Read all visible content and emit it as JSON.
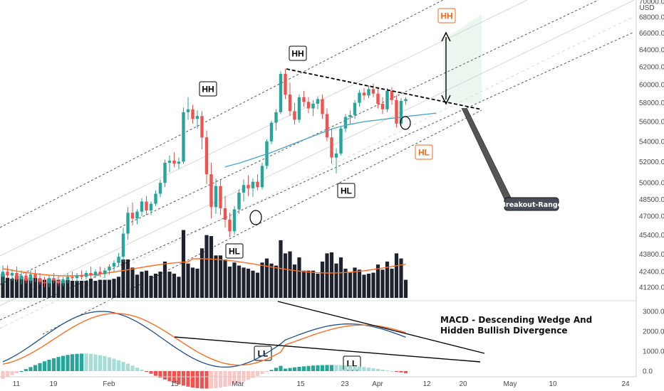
{
  "chart_data": [
    {
      "type": "candlestick",
      "symbol_currency": "USD",
      "price_axis": {
        "ticks": [
          41200,
          42400,
          43800,
          45400,
          47000,
          48500,
          50000,
          52000,
          54000,
          56000,
          58000,
          60000,
          62000,
          64000,
          66000,
          68000,
          70000
        ],
        "tick_labels": [
          "41200.0",
          "42400.0",
          "43800.0",
          "45400.0",
          "47000.0",
          "48500.0",
          "50000.0",
          "52000.0",
          "54000.0",
          "56000.0",
          "58000.0",
          "60000.0",
          "62000.0",
          "64000.0",
          "66000.0",
          "68000.0",
          "70000.0"
        ],
        "scale": "log"
      },
      "time_axis": {
        "labels": [
          "11",
          "19",
          "Feb",
          "15",
          "Mar",
          "15",
          "23",
          "Apr",
          "12",
          "20",
          "May",
          "10",
          "24"
        ]
      },
      "candles": [
        {
          "o": 42000,
          "h": 42900,
          "l": 41500,
          "c": 42400
        },
        {
          "o": 42400,
          "h": 42900,
          "l": 41900,
          "c": 42100
        },
        {
          "o": 42100,
          "h": 42600,
          "l": 41700,
          "c": 42300
        },
        {
          "o": 42300,
          "h": 42800,
          "l": 41600,
          "c": 41800
        },
        {
          "o": 41800,
          "h": 42500,
          "l": 41400,
          "c": 42100
        },
        {
          "o": 42100,
          "h": 42400,
          "l": 41500,
          "c": 41700
        },
        {
          "o": 41700,
          "h": 42500,
          "l": 41500,
          "c": 42200
        },
        {
          "o": 42200,
          "h": 42600,
          "l": 41600,
          "c": 41900
        },
        {
          "o": 41900,
          "h": 42300,
          "l": 41400,
          "c": 41600
        },
        {
          "o": 41600,
          "h": 42000,
          "l": 41200,
          "c": 41500
        },
        {
          "o": 41500,
          "h": 42100,
          "l": 41200,
          "c": 41900
        },
        {
          "o": 41900,
          "h": 42300,
          "l": 41500,
          "c": 41700
        },
        {
          "o": 41700,
          "h": 42100,
          "l": 41300,
          "c": 41500
        },
        {
          "o": 41500,
          "h": 42000,
          "l": 41300,
          "c": 41800
        },
        {
          "o": 41800,
          "h": 42300,
          "l": 41500,
          "c": 42000
        },
        {
          "o": 42000,
          "h": 42400,
          "l": 41700,
          "c": 41900
        },
        {
          "o": 41900,
          "h": 42300,
          "l": 41600,
          "c": 42100
        },
        {
          "o": 42100,
          "h": 42500,
          "l": 41800,
          "c": 42000
        },
        {
          "o": 42000,
          "h": 42500,
          "l": 41800,
          "c": 42300
        },
        {
          "o": 42300,
          "h": 42800,
          "l": 41900,
          "c": 42100
        },
        {
          "o": 42100,
          "h": 42600,
          "l": 41900,
          "c": 42400
        },
        {
          "o": 42400,
          "h": 42800,
          "l": 42000,
          "c": 42200
        },
        {
          "o": 42200,
          "h": 42700,
          "l": 41900,
          "c": 42500
        },
        {
          "o": 42500,
          "h": 43000,
          "l": 42200,
          "c": 42800
        },
        {
          "o": 42800,
          "h": 43300,
          "l": 42400,
          "c": 43100
        },
        {
          "o": 43100,
          "h": 43900,
          "l": 42800,
          "c": 43600
        },
        {
          "o": 43600,
          "h": 46000,
          "l": 43200,
          "c": 45500
        },
        {
          "o": 45500,
          "h": 47800,
          "l": 45000,
          "c": 47300
        },
        {
          "o": 47300,
          "h": 48200,
          "l": 46200,
          "c": 46800
        },
        {
          "o": 46800,
          "h": 47600,
          "l": 46300,
          "c": 47400
        },
        {
          "o": 47400,
          "h": 48600,
          "l": 47000,
          "c": 48300
        },
        {
          "o": 48300,
          "h": 48800,
          "l": 47100,
          "c": 47500
        },
        {
          "o": 47500,
          "h": 48300,
          "l": 47100,
          "c": 48100
        },
        {
          "o": 48100,
          "h": 49300,
          "l": 47900,
          "c": 49000
        },
        {
          "o": 49000,
          "h": 50300,
          "l": 48700,
          "c": 50000
        },
        {
          "o": 50000,
          "h": 52200,
          "l": 49600,
          "c": 51900
        },
        {
          "o": 51900,
          "h": 52600,
          "l": 51000,
          "c": 52100
        },
        {
          "o": 52100,
          "h": 52900,
          "l": 51500,
          "c": 51800
        },
        {
          "o": 51800,
          "h": 52400,
          "l": 51300,
          "c": 52000
        },
        {
          "o": 52000,
          "h": 57500,
          "l": 51800,
          "c": 57000
        },
        {
          "o": 57000,
          "h": 58600,
          "l": 56200,
          "c": 57300
        },
        {
          "o": 57300,
          "h": 57800,
          "l": 55800,
          "c": 56300
        },
        {
          "o": 56300,
          "h": 57200,
          "l": 55300,
          "c": 56600
        },
        {
          "o": 56600,
          "h": 57100,
          "l": 53200,
          "c": 54400
        },
        {
          "o": 54400,
          "h": 55100,
          "l": 49900,
          "c": 50800
        },
        {
          "o": 50800,
          "h": 51900,
          "l": 46800,
          "c": 47800
        },
        {
          "o": 47800,
          "h": 50400,
          "l": 47200,
          "c": 49700
        },
        {
          "o": 49700,
          "h": 50300,
          "l": 47100,
          "c": 47700
        },
        {
          "o": 47700,
          "h": 48800,
          "l": 46000,
          "c": 46700
        },
        {
          "o": 46700,
          "h": 47300,
          "l": 45200,
          "c": 45700
        },
        {
          "o": 45700,
          "h": 47900,
          "l": 45400,
          "c": 47600
        },
        {
          "o": 47600,
          "h": 49400,
          "l": 47200,
          "c": 49100
        },
        {
          "o": 49100,
          "h": 50300,
          "l": 48300,
          "c": 49800
        },
        {
          "o": 49800,
          "h": 50700,
          "l": 48800,
          "c": 49500
        },
        {
          "o": 49500,
          "h": 50400,
          "l": 48700,
          "c": 50100
        },
        {
          "o": 50100,
          "h": 50800,
          "l": 49300,
          "c": 49600
        },
        {
          "o": 49600,
          "h": 51900,
          "l": 49400,
          "c": 51600
        },
        {
          "o": 51600,
          "h": 54200,
          "l": 51300,
          "c": 54000
        },
        {
          "o": 54000,
          "h": 56100,
          "l": 53700,
          "c": 55900
        },
        {
          "o": 55900,
          "h": 57300,
          "l": 55100,
          "c": 57000
        },
        {
          "o": 57000,
          "h": 61500,
          "l": 56800,
          "c": 61200
        },
        {
          "o": 61200,
          "h": 61800,
          "l": 58400,
          "c": 58900
        },
        {
          "o": 58900,
          "h": 60200,
          "l": 56600,
          "c": 57100
        },
        {
          "o": 57100,
          "h": 58000,
          "l": 55700,
          "c": 56200
        },
        {
          "o": 56200,
          "h": 58900,
          "l": 55900,
          "c": 58600
        },
        {
          "o": 58600,
          "h": 59300,
          "l": 57600,
          "c": 58100
        },
        {
          "o": 58100,
          "h": 58600,
          "l": 56900,
          "c": 57400
        },
        {
          "o": 57400,
          "h": 58300,
          "l": 56600,
          "c": 57900
        },
        {
          "o": 57900,
          "h": 58700,
          "l": 57300,
          "c": 58400
        },
        {
          "o": 58400,
          "h": 58900,
          "l": 56300,
          "c": 56800
        },
        {
          "o": 56800,
          "h": 57400,
          "l": 54000,
          "c": 54400
        },
        {
          "o": 54400,
          "h": 55300,
          "l": 51800,
          "c": 52400
        },
        {
          "o": 52400,
          "h": 53300,
          "l": 50900,
          "c": 52800
        },
        {
          "o": 52800,
          "h": 55600,
          "l": 52600,
          "c": 55300
        },
        {
          "o": 55300,
          "h": 56800,
          "l": 54900,
          "c": 56500
        },
        {
          "o": 56500,
          "h": 57200,
          "l": 55700,
          "c": 56700
        },
        {
          "o": 56700,
          "h": 58300,
          "l": 56300,
          "c": 58000
        },
        {
          "o": 58000,
          "h": 59400,
          "l": 57600,
          "c": 59100
        },
        {
          "o": 59100,
          "h": 59600,
          "l": 58300,
          "c": 58800
        },
        {
          "o": 58800,
          "h": 59900,
          "l": 58500,
          "c": 59500
        },
        {
          "o": 59500,
          "h": 60100,
          "l": 58600,
          "c": 59000
        },
        {
          "o": 59000,
          "h": 59700,
          "l": 57400,
          "c": 57900
        },
        {
          "o": 57900,
          "h": 58600,
          "l": 56800,
          "c": 57300
        },
        {
          "o": 57300,
          "h": 59600,
          "l": 57000,
          "c": 59300
        },
        {
          "o": 59300,
          "h": 59700,
          "l": 57800,
          "c": 58300
        },
        {
          "o": 58300,
          "h": 58800,
          "l": 55400,
          "c": 55800
        },
        {
          "o": 55800,
          "h": 58500,
          "l": 55600,
          "c": 58200
        },
        {
          "o": 58200,
          "h": 58600,
          "l": 57800,
          "c": 58400
        }
      ],
      "moving_average": [
        51500,
        51900,
        52400,
        52900,
        53500,
        54100,
        54700,
        55300,
        55700,
        56000,
        56200,
        56400,
        56600
      ],
      "volume_ma_visible": true
    },
    {
      "type": "macd",
      "axis": {
        "ticks": [
          0,
          1000,
          2000,
          3000
        ],
        "tick_labels": [
          "0.0",
          "1000.0",
          "2000.0",
          "3000.0"
        ]
      },
      "macd_line_color": "#1f4e8c",
      "signal_line_color": "#ff6d1f",
      "histogram_colors": {
        "rising_pos": "#26a69a",
        "falling_pos": "#a7ddd7",
        "falling_neg": "#ef5350",
        "rising_neg": "#f8c7c6"
      }
    }
  ],
  "annotations": {
    "labels": [
      {
        "text": "HH",
        "style": "black"
      },
      {
        "text": "HH",
        "style": "black"
      },
      {
        "text": "HL",
        "style": "black"
      },
      {
        "text": "HL",
        "style": "black"
      },
      {
        "text": "HH",
        "style": "orange"
      },
      {
        "text": "HL",
        "style": "orange"
      },
      {
        "text": "LL",
        "style": "black"
      },
      {
        "text": "LL",
        "style": "black"
      }
    ],
    "callout": "Breakout-Range",
    "macd_note_line1": "MACD - Descending Wedge And",
    "macd_note_line2": "Hidden Bullish Divergence"
  },
  "colors": {
    "bull": "#26a69a",
    "bear": "#ef5350",
    "volume": "#1e222d",
    "ma": "#46a5c8",
    "vol_ma": "#ff6d1f",
    "orange_label": "#f7671a",
    "target_zone": "#e8f5ec"
  }
}
